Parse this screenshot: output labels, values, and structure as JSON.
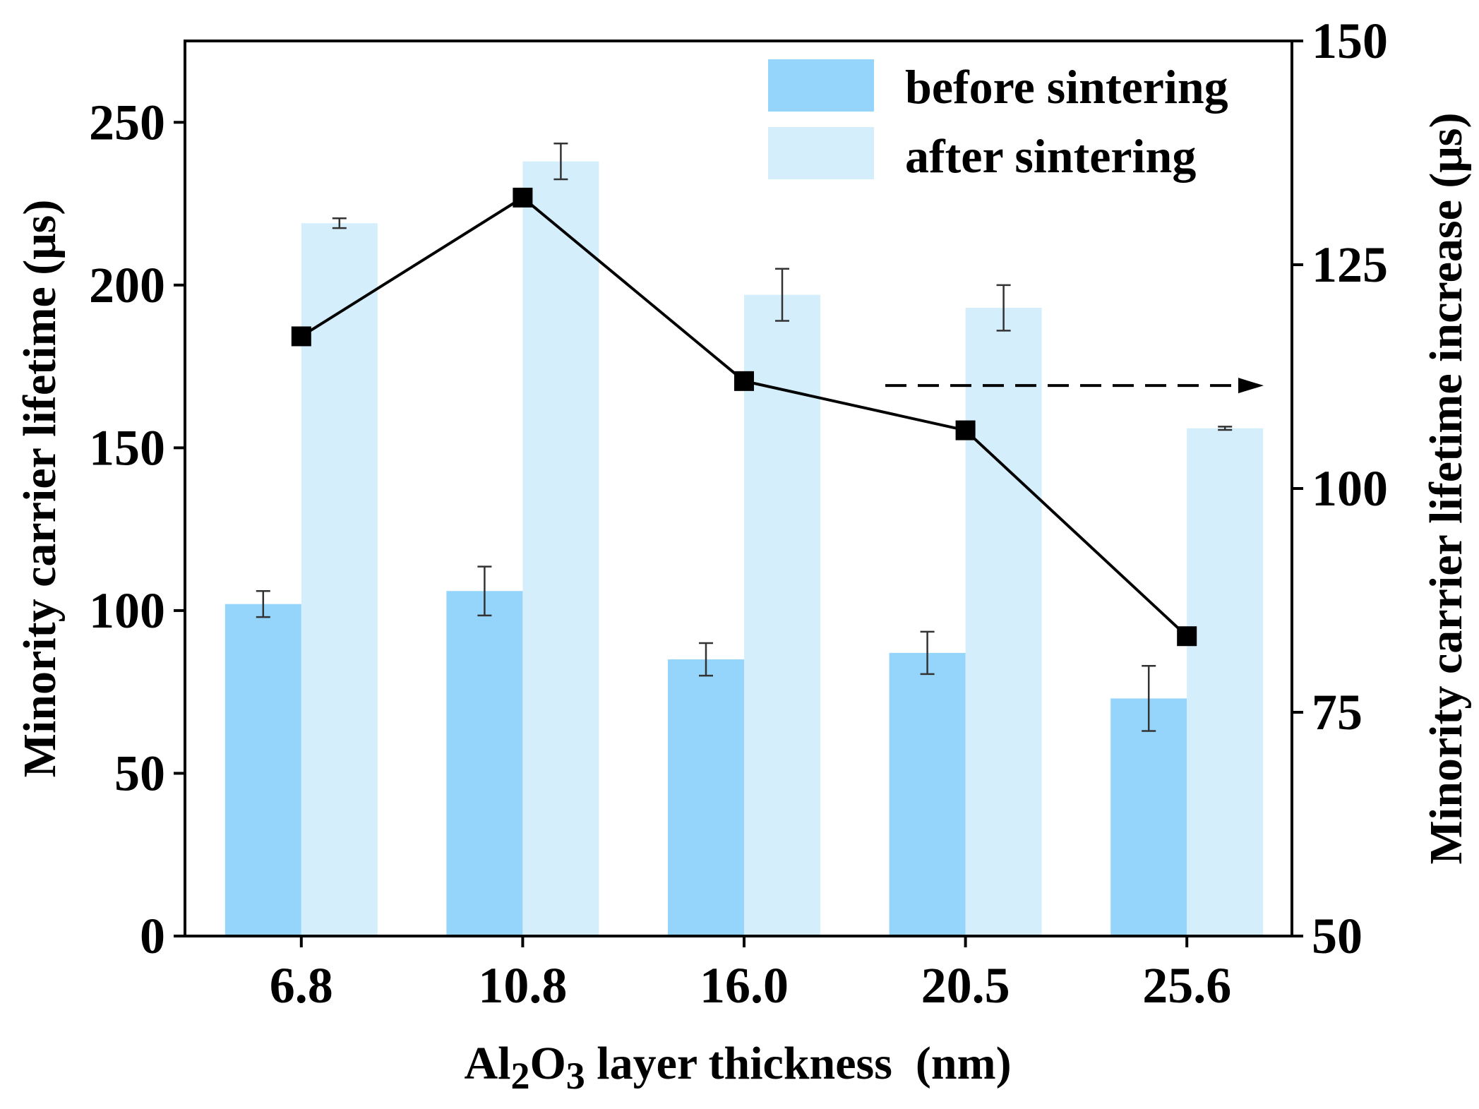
{
  "chart_data": {
    "type": "bar",
    "categories": [
      "6.8",
      "10.8",
      "16.0",
      "20.5",
      "25.6"
    ],
    "series": [
      {
        "name": "before sintering",
        "color": "#95d5fb",
        "axis": "left",
        "values": [
          102,
          106,
          85,
          87,
          73
        ],
        "errors": [
          4,
          7.5,
          5,
          6.5,
          10
        ]
      },
      {
        "name": "after sintering",
        "color": "#d4eefc",
        "axis": "left",
        "values": [
          219,
          238,
          197,
          193,
          156
        ],
        "errors": [
          1.5,
          5.5,
          8,
          7,
          0.5
        ]
      },
      {
        "name": "Minority carrier lifetime increase",
        "type": "line",
        "color": "#000000",
        "axis": "right",
        "values": [
          117,
          132.5,
          112,
          106.5,
          83.5
        ]
      }
    ],
    "y_left": {
      "label": "Minority carrier lifetime  (μs)",
      "lim": [
        0,
        275
      ],
      "ticks": [
        0,
        50,
        100,
        150,
        200,
        250
      ],
      "tick_labels": [
        "0",
        "50",
        "100",
        "150",
        "200",
        "250"
      ]
    },
    "y_right": {
      "label": "Minority carrier lifetime increase  (μs)",
      "lim": [
        50,
        150
      ],
      "ticks": [
        50,
        75,
        100,
        125,
        150
      ],
      "tick_labels": [
        "50",
        "75",
        "100",
        "125",
        "150"
      ]
    },
    "x_label": {
      "prefix": "Al",
      "sub1": "2",
      "mid": "O",
      "sub2": "3",
      "suffix": " layer thickness  (nm)"
    },
    "legend": {
      "position": "top-right",
      "entries": [
        "before sintering",
        "after sintering"
      ]
    },
    "arrow": {
      "from_category": "16.0",
      "y_right": 111.5,
      "direction": "right",
      "style": "dashed",
      "meaning": "line uses right axis"
    },
    "grid": false
  }
}
